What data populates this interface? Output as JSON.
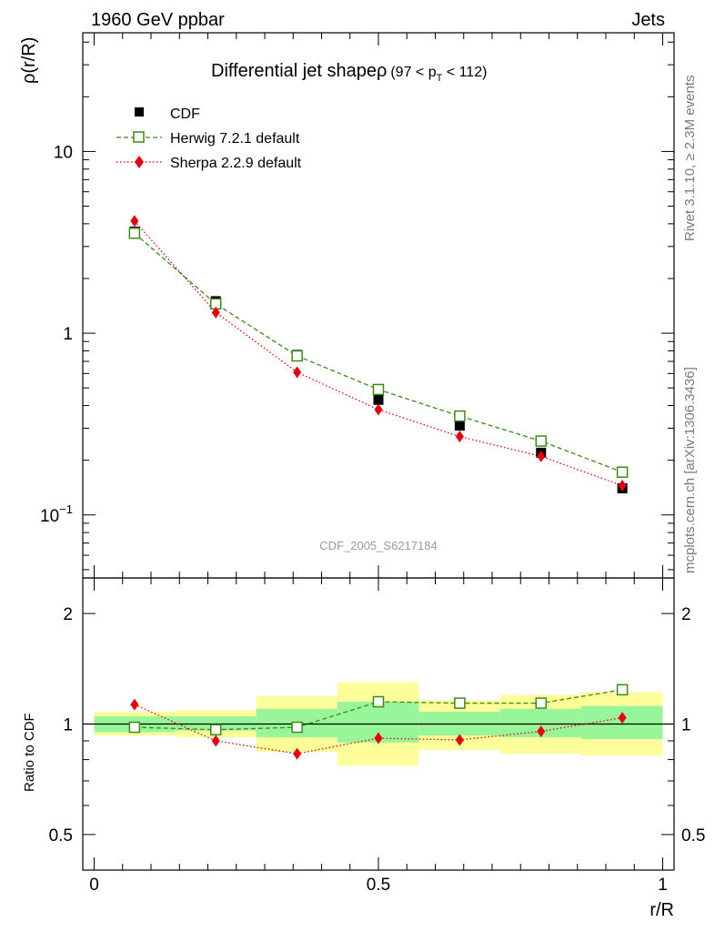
{
  "header": {
    "left": "1960 GeV ppbar",
    "right": "Jets"
  },
  "side_labels": {
    "rivet": "Rivet 3.1.10, ≥ 2.3M events",
    "mcplots": "mcplots.cern.ch [arXiv:1306.3436]"
  },
  "colors": {
    "cdf": "#000000",
    "herwig": "#3a8c16",
    "sherpa": "#e8000b",
    "band_inner": "#99f599",
    "band_outer": "#fdfd9a"
  },
  "chart_data": [
    {
      "type": "line",
      "panel": "main",
      "title": "Differential jet shapeρ",
      "title_cut": {
        "pre": "(97 < p",
        "sub": "T",
        "post": " < 112)"
      },
      "analysis_label": "CDF_2005_S6217184",
      "xlabel": "r/R",
      "ylabel": "ρ(r/R)",
      "yscale": "log",
      "xlim": [
        -0.02,
        1.02
      ],
      "ylim": [
        0.045,
        45
      ],
      "x_ticks": [
        0,
        0.5,
        1
      ],
      "x_tick_labels": [
        "0",
        "0.5",
        "1"
      ],
      "y_ticks": [
        0.1,
        1,
        10
      ],
      "y_tick_labels": [
        {
          "base": "10",
          "exp": "−1"
        },
        {
          "base": "1",
          "exp": ""
        },
        {
          "base": "10",
          "exp": ""
        }
      ],
      "x": [
        0.071,
        0.214,
        0.357,
        0.5,
        0.643,
        0.786,
        0.929
      ],
      "x_bins": [
        [
          0.0,
          0.142
        ],
        [
          0.142,
          0.285
        ],
        [
          0.285,
          0.428
        ],
        [
          0.428,
          0.571
        ],
        [
          0.571,
          0.714
        ],
        [
          0.714,
          0.857
        ],
        [
          0.857,
          1.0
        ]
      ],
      "series": [
        {
          "name": "CDF",
          "role": "data",
          "marker": "filled-square",
          "values": [
            3.62,
            1.5,
            0.76,
            0.43,
            0.31,
            0.22,
            0.14
          ]
        },
        {
          "name": "Herwig 7.2.1 default",
          "role": "mc",
          "marker": "open-square",
          "linestyle": "dashed",
          "values": [
            3.55,
            1.45,
            0.75,
            0.49,
            0.35,
            0.255,
            0.172
          ]
        },
        {
          "name": "Sherpa 2.2.9 default",
          "role": "mc",
          "marker": "diamond",
          "linestyle": "dotted",
          "values": [
            4.15,
            1.3,
            0.61,
            0.38,
            0.27,
            0.21,
            0.145
          ]
        }
      ],
      "legend_position": "top-left"
    },
    {
      "type": "line",
      "panel": "ratio",
      "ylabel": "Ratio to CDF",
      "xlabel": "r/R",
      "yscale": "log",
      "xlim": [
        -0.02,
        1.02
      ],
      "ylim": [
        0.4,
        2.5
      ],
      "y_ticks": [
        0.5,
        1,
        2
      ],
      "y_tick_labels": [
        "0.5",
        "1",
        "2"
      ],
      "x_ticks": [
        0,
        0.5,
        1
      ],
      "x_tick_labels": [
        "0",
        "0.5",
        "1"
      ],
      "x": [
        0.071,
        0.214,
        0.357,
        0.5,
        0.643,
        0.786,
        0.929
      ],
      "x_bins": [
        [
          0.0,
          0.142
        ],
        [
          0.142,
          0.285
        ],
        [
          0.285,
          0.428
        ],
        [
          0.428,
          0.571
        ],
        [
          0.571,
          0.714
        ],
        [
          0.714,
          0.857
        ],
        [
          0.857,
          1.0
        ]
      ],
      "reference_line": 1,
      "stat_band": [
        [
          0.95,
          1.05
        ],
        [
          0.96,
          1.05
        ],
        [
          0.92,
          1.1
        ],
        [
          0.89,
          1.15
        ],
        [
          0.93,
          1.08
        ],
        [
          0.92,
          1.1
        ],
        [
          0.91,
          1.12
        ]
      ],
      "total_band": [
        [
          0.93,
          1.08
        ],
        [
          0.92,
          1.09
        ],
        [
          0.84,
          1.19
        ],
        [
          0.77,
          1.3
        ],
        [
          0.85,
          1.16
        ],
        [
          0.83,
          1.2
        ],
        [
          0.82,
          1.22
        ]
      ],
      "series": [
        {
          "name": "Herwig 7.2.1 default",
          "values": [
            0.98,
            0.965,
            0.98,
            1.15,
            1.14,
            1.14,
            1.24
          ]
        },
        {
          "name": "Sherpa 2.2.9 default",
          "values": [
            1.13,
            0.9,
            0.83,
            0.915,
            0.905,
            0.955,
            1.04
          ]
        }
      ]
    }
  ]
}
